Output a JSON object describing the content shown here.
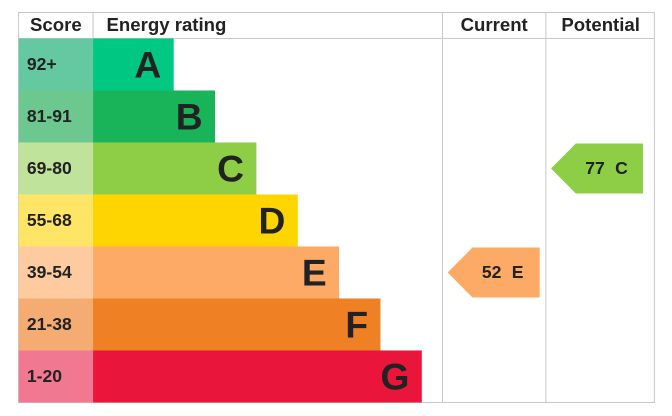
{
  "header": {
    "score": "Score",
    "rating": "Energy rating",
    "current": "Current",
    "potential": "Potential"
  },
  "bands": [
    {
      "score": "92+",
      "letter": "A",
      "color": "#00c781",
      "light": "#64c8a0"
    },
    {
      "score": "81-91",
      "letter": "B",
      "color": "#19b459",
      "light": "#6cc88e"
    },
    {
      "score": "69-80",
      "letter": "C",
      "color": "#8dce46",
      "light": "#bfe39a"
    },
    {
      "score": "55-68",
      "letter": "D",
      "color": "#ffd500",
      "light": "#ffe566"
    },
    {
      "score": "39-54",
      "letter": "E",
      "color": "#fcaa65",
      "light": "#fdcb9f"
    },
    {
      "score": "21-38",
      "letter": "F",
      "color": "#ef8023",
      "light": "#f5ac72"
    },
    {
      "score": "1-20",
      "letter": "G",
      "color": "#e9153b",
      "light": "#f07891"
    }
  ],
  "current": {
    "value": 52,
    "letter": "E"
  },
  "potential": {
    "value": 77,
    "letter": "C"
  }
}
